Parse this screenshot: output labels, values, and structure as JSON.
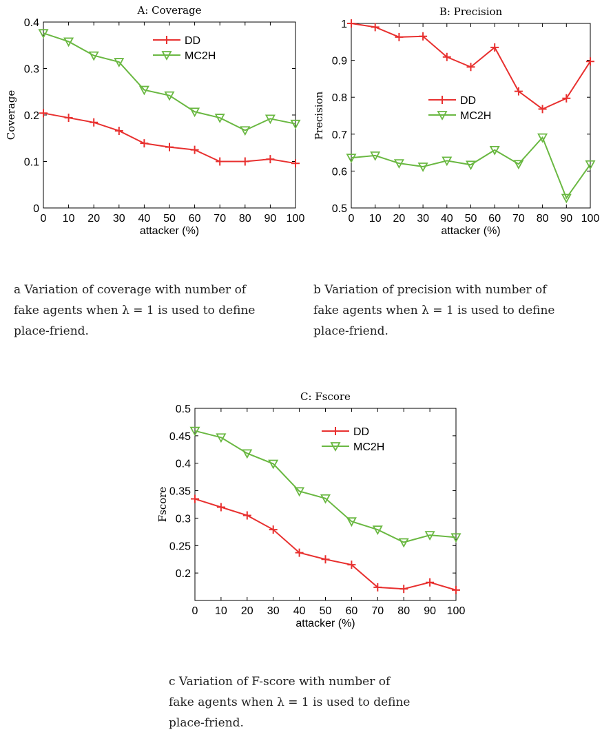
{
  "chart_data": [
    {
      "type": "line",
      "title": "A: Coverage",
      "xlabel": "attacker (%)",
      "ylabel": "Coverage",
      "x": [
        0,
        10,
        20,
        30,
        40,
        50,
        60,
        70,
        80,
        90,
        100
      ],
      "xticks": [
        "0",
        "10",
        "20",
        "30",
        "40",
        "50",
        "60",
        "70",
        "80",
        "90",
        "100"
      ],
      "xlim": [
        0,
        100
      ],
      "ylim": [
        0,
        0.4
      ],
      "yticks": [
        "0",
        "0.1",
        "0.2",
        "0.3",
        "0.4"
      ],
      "legend_position": "top-right",
      "grid": false,
      "series": [
        {
          "name": "DD",
          "marker": "plus",
          "color": "#e8302f",
          "values": [
            0.204,
            0.194,
            0.184,
            0.166,
            0.139,
            0.131,
            0.125,
            0.1,
            0.1,
            0.105,
            0.096
          ]
        },
        {
          "name": "MC2H",
          "marker": "triangle-down",
          "color": "#6ab842",
          "values": [
            0.376,
            0.358,
            0.328,
            0.314,
            0.254,
            0.242,
            0.207,
            0.194,
            0.167,
            0.192,
            0.181
          ]
        }
      ]
    },
    {
      "type": "line",
      "title": "B: Precision",
      "xlabel": "attacker (%)",
      "ylabel": "Precision",
      "x": [
        0,
        10,
        20,
        30,
        40,
        50,
        60,
        70,
        80,
        90,
        100
      ],
      "xticks": [
        "0",
        "10",
        "20",
        "30",
        "40",
        "50",
        "60",
        "70",
        "80",
        "90",
        "100"
      ],
      "xlim": [
        0,
        100
      ],
      "ylim": [
        0.5,
        1
      ],
      "yticks": [
        "0.5",
        "0.6",
        "0.7",
        "0.8",
        "0.9",
        "1"
      ],
      "legend_position": "center-right",
      "grid": false,
      "series": [
        {
          "name": "DD",
          "marker": "plus",
          "color": "#e8302f",
          "values": [
            1.0,
            0.99,
            0.963,
            0.965,
            0.909,
            0.882,
            0.935,
            0.816,
            0.768,
            0.797,
            0.897
          ]
        },
        {
          "name": "MC2H",
          "marker": "triangle-down",
          "color": "#6ab842",
          "values": [
            0.636,
            0.642,
            0.621,
            0.612,
            0.628,
            0.617,
            0.657,
            0.619,
            0.691,
            0.527,
            0.618
          ]
        }
      ]
    },
    {
      "type": "line",
      "title": "C: Fscore",
      "xlabel": "attacker (%)",
      "ylabel": "Fscore",
      "x": [
        0,
        10,
        20,
        30,
        40,
        50,
        60,
        70,
        80,
        90,
        100
      ],
      "xticks": [
        "0",
        "10",
        "20",
        "30",
        "40",
        "50",
        "60",
        "70",
        "80",
        "90",
        "100"
      ],
      "xlim": [
        0,
        100
      ],
      "ylim": [
        0.15,
        0.5
      ],
      "yticks": [
        "0.2",
        "0.25",
        "0.3",
        "0.35",
        "0.4",
        "0.45",
        "0.5"
      ],
      "legend_position": "top-right",
      "grid": false,
      "series": [
        {
          "name": "DD",
          "marker": "plus",
          "color": "#e8302f",
          "values": [
            0.335,
            0.32,
            0.305,
            0.279,
            0.237,
            0.225,
            0.215,
            0.174,
            0.171,
            0.183,
            0.169
          ]
        },
        {
          "name": "MC2H",
          "marker": "triangle-down",
          "color": "#6ab842",
          "values": [
            0.459,
            0.447,
            0.418,
            0.399,
            0.349,
            0.336,
            0.294,
            0.279,
            0.256,
            0.269,
            0.265
          ]
        }
      ]
    }
  ],
  "captions": {
    "a": [
      "a Variation of coverage with number of",
      "fake agents when λ = 1 is used to define",
      "place-friend."
    ],
    "b": [
      "b Variation of precision with number of",
      "fake agents when λ = 1 is used to define",
      "place-friend."
    ],
    "c": [
      "c Variation of F-score with number of",
      "fake agents when λ = 1 is used to define",
      "place-friend."
    ]
  }
}
